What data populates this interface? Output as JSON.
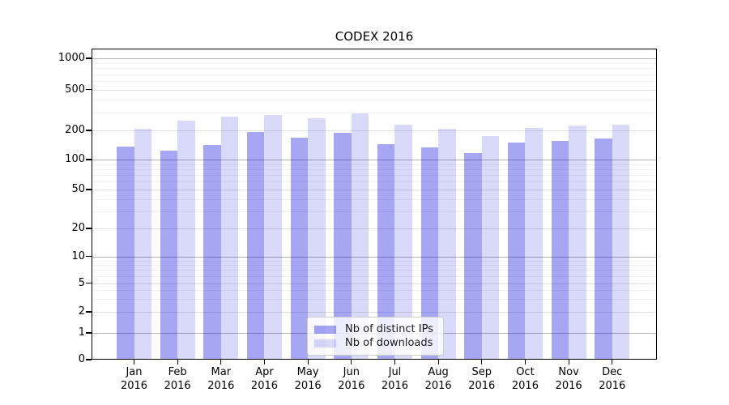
{
  "chart_data": {
    "type": "bar",
    "title": "CODEX 2016",
    "xlabel": "",
    "ylabel": "",
    "yscale": "symlog (logarithmic above 1, linear 0 to 1)",
    "grid": "on (major and minor horizontal gridlines)",
    "legend_position": "lower center, inside axes",
    "yticks": [
      1000,
      500,
      200,
      100,
      50,
      20,
      10,
      5,
      2,
      1,
      0
    ],
    "ylim_top_approx": 1300,
    "categories": [
      "Jan",
      "Feb",
      "Mar",
      "Apr",
      "May",
      "Jun",
      "Jul",
      "Aug",
      "Sep",
      "Oct",
      "Nov",
      "Dec"
    ],
    "year": "2016",
    "series": [
      {
        "name": "Nb of distinct IPs",
        "color": "#a5a5f1",
        "values": [
          137,
          124,
          142,
          194,
          169,
          187,
          144,
          134,
          117,
          149,
          155,
          166
        ]
      },
      {
        "name": "Nb of downloads",
        "color": "#d9d9f9",
        "values": [
          208,
          249,
          274,
          284,
          264,
          295,
          228,
          207,
          174,
          210,
          224,
          227
        ]
      }
    ]
  }
}
